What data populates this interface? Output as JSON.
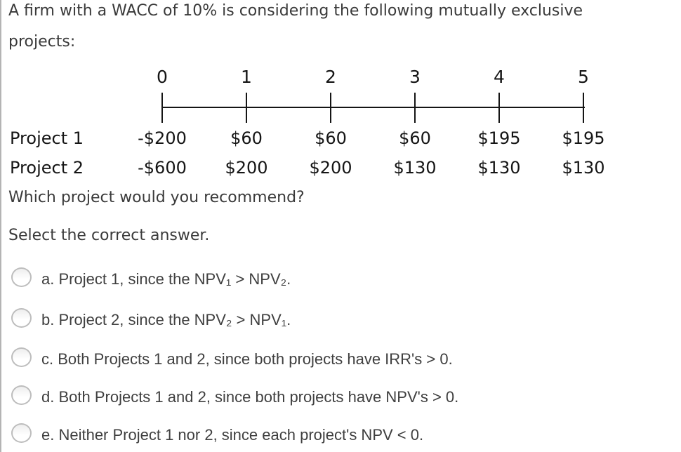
{
  "question": {
    "intro_lines": [
      "A firm with a WACC of 10% is considering the following mutually exclusive",
      "projects:"
    ],
    "prompt": "Which project would you recommend?",
    "instruction": "Select the correct answer."
  },
  "timeline": {
    "periods": [
      "0",
      "1",
      "2",
      "3",
      "4",
      "5"
    ],
    "rows": [
      {
        "label": "Project 1",
        "values": [
          "-$200",
          "$60",
          "$60",
          "$60",
          "$195",
          "$195"
        ]
      },
      {
        "label": "Project 2",
        "values": [
          "-$600",
          "$200",
          "$200",
          "$130",
          "$130",
          "$130"
        ]
      }
    ]
  },
  "options": [
    {
      "letter": "a",
      "label": "a. Project 1, since the NPV₁ > NPV₂.",
      "selected": false
    },
    {
      "letter": "b",
      "label": "b. Project 2, since the NPV₂ > NPV₁.",
      "selected": false
    },
    {
      "letter": "c",
      "label": "c. Both Projects 1 and 2, since both projects have IRR's > 0.",
      "selected": false
    },
    {
      "letter": "d",
      "label": "d. Both Projects 1 and 2, since both projects have NPV's > 0.",
      "selected": false
    },
    {
      "letter": "e",
      "label": "e. Neither Project 1 nor 2, since each project's NPV < 0.",
      "selected": false
    }
  ],
  "colors": {
    "border_left": "#b4b4b4",
    "text_primary": "#3a3a3a",
    "text_dark": "#151515",
    "radio_border": "#bdbdbd",
    "option_text": "#3f3f3f"
  }
}
